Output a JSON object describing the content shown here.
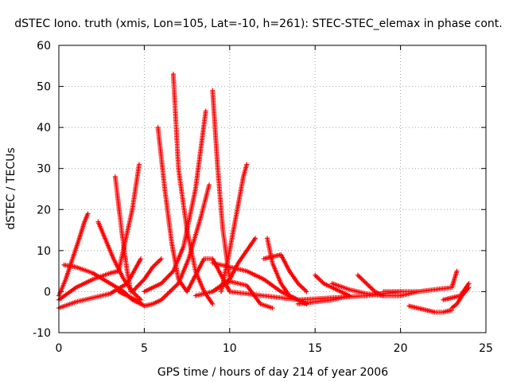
{
  "chart_data": {
    "type": "scatter",
    "title": "dSTEC Iono. truth (xmis, Lon=105, Lat=-10, h=261): STEC-STEC_elemax in phase cont.",
    "xlabel": "GPS time / hours of day 214 of year 2006",
    "ylabel": "dSTEC  / TECUs",
    "xlim": [
      0,
      25
    ],
    "ylim": [
      -10,
      60
    ],
    "x_ticks": [
      "0",
      "5",
      "10",
      "15",
      "20",
      "25"
    ],
    "y_ticks": [
      "-10",
      "0",
      "10",
      "20",
      "30",
      "40",
      "50",
      "60"
    ],
    "grid": true,
    "marker": "plus",
    "color": "#ff0000",
    "series": [
      {
        "x": [
          0.0,
          0.4,
          0.8,
          1.2,
          1.5,
          1.7
        ],
        "y": [
          -1,
          3,
          8,
          13,
          17,
          19
        ]
      },
      {
        "x": [
          0.3,
          1.0,
          2.0,
          3.0,
          3.8,
          4.3,
          4.8
        ],
        "y": [
          6.5,
          6,
          4.5,
          2,
          0,
          -2,
          -3
        ]
      },
      {
        "x": [
          0.0,
          1.0,
          2.0,
          3.0,
          4.0,
          4.8
        ],
        "y": [
          -4,
          -2.5,
          -1.5,
          -0.5,
          2,
          8
        ]
      },
      {
        "x": [
          0.0,
          1.0,
          2.0,
          3.0,
          3.5,
          4.3,
          4.7
        ],
        "y": [
          -2,
          1,
          3,
          4.5,
          5,
          20,
          31
        ]
      },
      {
        "x": [
          2.3,
          2.7,
          3.2,
          3.8,
          4.3,
          4.8
        ],
        "y": [
          17,
          13,
          8,
          3,
          0,
          -2
        ]
      },
      {
        "x": [
          3.3,
          3.7,
          4.0,
          4.2
        ],
        "y": [
          28,
          14,
          5,
          0
        ]
      },
      {
        "x": [
          3.5,
          4.5,
          5.0,
          5.5,
          6.0,
          6.5
        ],
        "y": [
          0,
          -2,
          -3.5,
          -3,
          -2,
          0
        ]
      },
      {
        "x": [
          4.3,
          5.0,
          5.5,
          6.0
        ],
        "y": [
          0,
          3,
          6,
          8
        ]
      },
      {
        "x": [
          5.8,
          6.2,
          6.6,
          7.0,
          7.5
        ],
        "y": [
          40,
          25,
          12,
          3,
          0
        ]
      },
      {
        "x": [
          5.0,
          6.0,
          6.7,
          7.3,
          8.0,
          8.6
        ],
        "y": [
          0,
          2,
          5,
          11,
          25,
          44
        ]
      },
      {
        "x": [
          6.7,
          7.0,
          7.5,
          8.0,
          8.5,
          9.0
        ],
        "y": [
          53,
          30,
          15,
          5,
          0,
          -3
        ]
      },
      {
        "x": [
          6.5,
          7.0,
          7.6,
          8.3,
          8.8
        ],
        "y": [
          0,
          2,
          8,
          18,
          26
        ]
      },
      {
        "x": [
          7.5,
          8.0,
          8.5,
          9.0,
          9.5,
          10.0
        ],
        "y": [
          0,
          4,
          8,
          8,
          4,
          0
        ]
      },
      {
        "x": [
          9.0,
          9.3,
          9.6,
          10.0
        ],
        "y": [
          49,
          30,
          15,
          3
        ]
      },
      {
        "x": [
          9.5,
          10.0,
          10.4,
          10.8,
          11.0
        ],
        "y": [
          0,
          10,
          19,
          28,
          31
        ]
      },
      {
        "x": [
          8.0,
          9.0,
          10.0,
          10.5,
          11.0,
          11.5
        ],
        "y": [
          -1,
          0,
          3,
          7,
          10,
          13
        ]
      },
      {
        "x": [
          9.0,
          10.0,
          11.0,
          12.0,
          13.0,
          14.0,
          14.5
        ],
        "y": [
          7,
          6,
          5,
          3,
          0,
          -2,
          -3
        ]
      },
      {
        "x": [
          9.0,
          10.0,
          11.0,
          11.8,
          12.5
        ],
        "y": [
          0,
          2.5,
          1.5,
          -3,
          -4
        ]
      },
      {
        "x": [
          12.2,
          12.5,
          13.0,
          13.5,
          14.0,
          14.5
        ],
        "y": [
          13,
          7,
          2,
          -1,
          -2,
          -3
        ]
      },
      {
        "x": [
          12.0,
          12.5,
          13.0,
          13.5,
          14.0,
          14.5
        ],
        "y": [
          8,
          8.5,
          9,
          5,
          2,
          0
        ]
      },
      {
        "x": [
          10.0,
          12.0,
          14.0,
          16.0,
          18.0,
          20.0
        ],
        "y": [
          0,
          -1,
          -2,
          -1.5,
          -1,
          0
        ]
      },
      {
        "x": [
          14.0,
          15.0,
          16.0,
          17.0
        ],
        "y": [
          -3,
          -2.5,
          -2,
          -1
        ]
      },
      {
        "x": [
          15.0,
          15.5,
          16.0,
          16.5,
          17.0
        ],
        "y": [
          4,
          2,
          1,
          0,
          -1
        ]
      },
      {
        "x": [
          16.0,
          17.0,
          18.0,
          19.0,
          20.0,
          21.0
        ],
        "y": [
          2,
          0.5,
          -0.5,
          -1,
          -1,
          0
        ]
      },
      {
        "x": [
          17.5,
          18.0,
          18.5,
          19.0
        ],
        "y": [
          4,
          2,
          0,
          -1
        ]
      },
      {
        "x": [
          19.0,
          20.0,
          21.0,
          22.0,
          23.0,
          23.3
        ],
        "y": [
          0,
          0,
          0,
          0.5,
          1,
          5
        ]
      },
      {
        "x": [
          20.5,
          21.0,
          21.5,
          22.0,
          22.5,
          23.0
        ],
        "y": [
          -3.5,
          -4,
          -4.5,
          -5,
          -5,
          -4.5
        ]
      },
      {
        "x": [
          23.0,
          23.3,
          23.6,
          24.0
        ],
        "y": [
          -4,
          -3,
          -1,
          1
        ]
      },
      {
        "x": [
          22.5,
          23.0,
          23.5,
          24.0
        ],
        "y": [
          -2,
          -1.5,
          -1,
          2
        ]
      }
    ]
  }
}
